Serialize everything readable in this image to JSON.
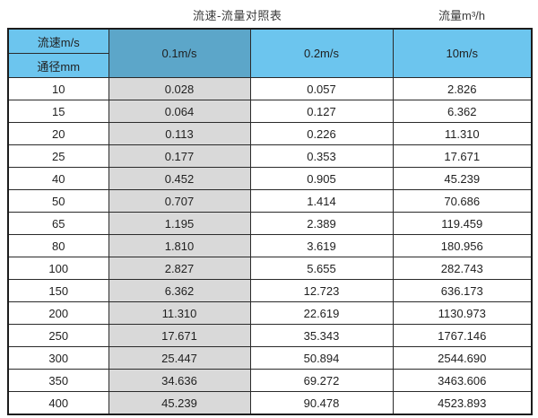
{
  "chart_data": {
    "type": "table",
    "title": "流速-流量对照表",
    "unit_label": "流量m³/h",
    "corner_label": "流速m/s",
    "columns": [
      "通径mm",
      "0.1m/s",
      "0.2m/s",
      "10m/s"
    ],
    "rows": [
      [
        "10",
        "0.028",
        "0.057",
        "2.826"
      ],
      [
        "15",
        "0.064",
        "0.127",
        "6.362"
      ],
      [
        "20",
        "0.113",
        "0.226",
        "11.310"
      ],
      [
        "25",
        "0.177",
        "0.353",
        "17.671"
      ],
      [
        "40",
        "0.452",
        "0.905",
        "45.239"
      ],
      [
        "50",
        "0.707",
        "1.414",
        "70.686"
      ],
      [
        "65",
        "1.195",
        "2.389",
        "119.459"
      ],
      [
        "80",
        "1.810",
        "3.619",
        "180.956"
      ],
      [
        "100",
        "2.827",
        "5.655",
        "282.743"
      ],
      [
        "150",
        "6.362",
        "12.723",
        "636.173"
      ],
      [
        "200",
        "11.310",
        "22.619",
        "1130.973"
      ],
      [
        "250",
        "17.671",
        "35.343",
        "1767.146"
      ],
      [
        "300",
        "25.447",
        "50.894",
        "2544.690"
      ],
      [
        "350",
        "34.636",
        "69.272",
        "3463.606"
      ],
      [
        "400",
        "45.239",
        "90.478",
        "4523.893"
      ]
    ],
    "layout_hints": {
      "highlight_column_header": "0.1m/s",
      "shaded_data_column": "0.1m/s"
    }
  },
  "colors": {
    "header_blue": "#6cc5ee",
    "header_dark_blue": "#5ca6c9",
    "gray_column": "#d9d9d9",
    "border": "#1c1c1c",
    "text": "#1f1f1f"
  }
}
